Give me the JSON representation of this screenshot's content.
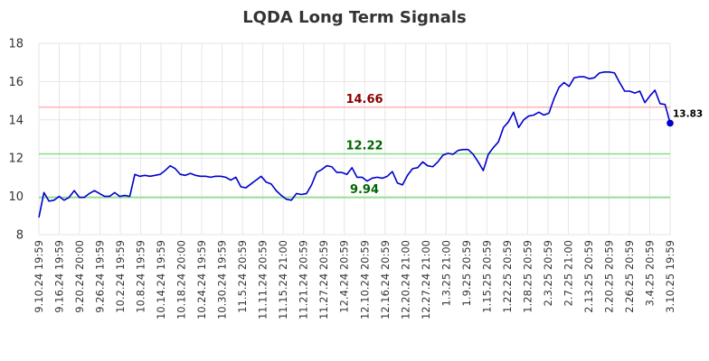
{
  "chart_data": {
    "type": "line",
    "title": "LQDA Long Term Signals",
    "xlabel": "",
    "ylabel": "",
    "ylim": [
      8,
      18
    ],
    "yticks": [
      8,
      10,
      12,
      14,
      16,
      18
    ],
    "grid": true,
    "x_tick_labels": [
      "9.10.24 19:59",
      "9.16.24 19:59",
      "9.20.24 20:00",
      "9.26.24 19:59",
      "10.2.24 19:59",
      "10.8.24 19:59",
      "10.14.24 19:59",
      "10.18.24 20:00",
      "10.24.24 19:59",
      "10.30.24 19:59",
      "11.5.24 20:59",
      "11.11.24 20:59",
      "11.15.24 21:00",
      "11.21.24 20:59",
      "11.27.24 20:59",
      "12.4.24 20:59",
      "12.10.24 20:59",
      "12.16.24 20:59",
      "12.20.24 21:00",
      "12.27.24 21:00",
      "1.3.25 21:00",
      "1.9.25 20:59",
      "1.15.25 20:59",
      "1.22.25 20:59",
      "1.28.25 20:59",
      "2.3.25 20:59",
      "2.7.25 21:00",
      "2.13.25 20:59",
      "2.20.25 20:59",
      "2.26.25 20:59",
      "3.4.25 20:59",
      "3.10.25 19:59"
    ],
    "series": [
      {
        "color": "#0000cc",
        "values": [
          8.9,
          10.2,
          9.75,
          9.8,
          10.0,
          9.8,
          9.95,
          10.3,
          9.95,
          9.95,
          10.15,
          10.3,
          10.15,
          10.0,
          10.0,
          10.2,
          10.0,
          10.05,
          10.0,
          11.15,
          11.05,
          11.1,
          11.05,
          11.1,
          11.15,
          11.35,
          11.6,
          11.45,
          11.15,
          11.1,
          11.2,
          11.1,
          11.05,
          11.05,
          11.0,
          11.05,
          11.05,
          11.0,
          10.85,
          11.0,
          10.5,
          10.45,
          10.65,
          10.85,
          11.05,
          10.75,
          10.65,
          10.3,
          10.05,
          9.85,
          9.8,
          10.15,
          10.1,
          10.15,
          10.6,
          11.25,
          11.4,
          11.6,
          11.55,
          11.25,
          11.25,
          11.15,
          11.5,
          11.0,
          11.0,
          10.8,
          10.95,
          11.0,
          10.95,
          11.05,
          11.3,
          10.7,
          10.6,
          11.1,
          11.45,
          11.5,
          11.8,
          11.6,
          11.55,
          11.8,
          12.15,
          12.25,
          12.2,
          12.4,
          12.45,
          12.45,
          12.2,
          11.8,
          11.35,
          12.2,
          12.55,
          12.85,
          13.6,
          13.9,
          14.4,
          13.6,
          14.0,
          14.2,
          14.25,
          14.4,
          14.25,
          14.35,
          15.1,
          15.7,
          15.95,
          15.75,
          16.2,
          16.25,
          16.25,
          16.15,
          16.2,
          16.45,
          16.5,
          16.5,
          16.45,
          15.95,
          15.5,
          15.5,
          15.4,
          15.5,
          14.9,
          15.25,
          15.55,
          14.85,
          14.8,
          13.83
        ]
      }
    ],
    "horizontal_lines": [
      {
        "value": 14.66,
        "label": "14.66",
        "line_color": "#ffb3b3",
        "text_color": "#8b0000"
      },
      {
        "value": 12.22,
        "label": "12.22",
        "line_color": "#80e080",
        "text_color": "#006400"
      },
      {
        "value": 9.94,
        "label": "9.94",
        "line_color": "#80e080",
        "text_color": "#006400"
      }
    ],
    "last_point": {
      "value": 13.83,
      "label": "13.83"
    }
  }
}
